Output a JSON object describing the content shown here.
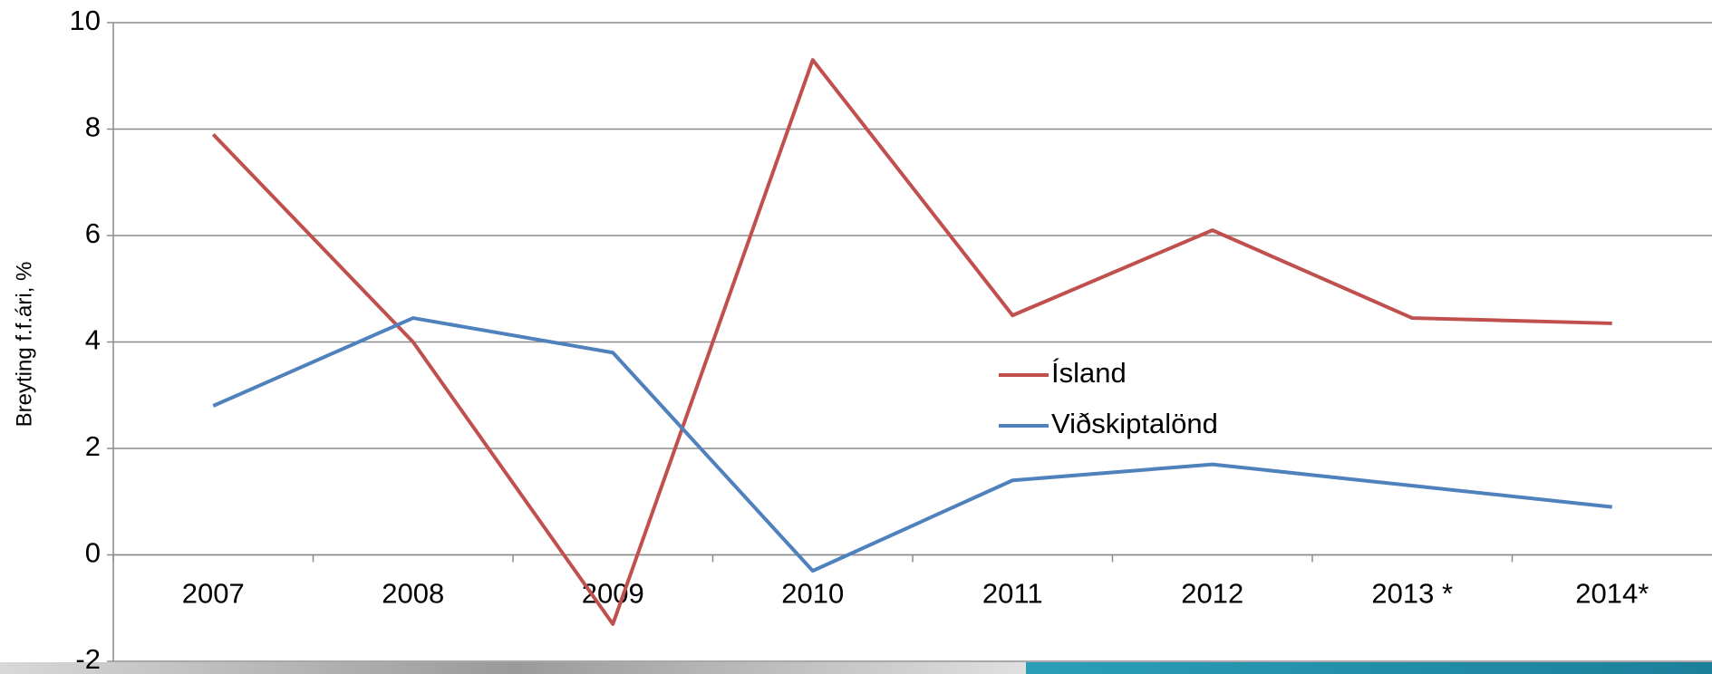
{
  "chart_data": {
    "type": "line",
    "y_label": "Breyting f.f.ári, %",
    "categories": [
      "2007",
      "2008",
      "2009",
      "2010",
      "2011",
      "2012",
      "2013 *",
      "2014*"
    ],
    "series": [
      {
        "name": "Ísland",
        "color": "#c0504d",
        "values": [
          7.9,
          4.0,
          -1.3,
          9.3,
          4.5,
          6.1,
          4.45,
          4.35
        ]
      },
      {
        "name": "Viðskiptalönd",
        "color": "#4f81bd",
        "values": [
          2.8,
          4.45,
          3.8,
          -0.3,
          1.4,
          1.7,
          1.3,
          0.9
        ]
      }
    ],
    "ylim": [
      -2,
      10
    ],
    "yticks": [
      -2,
      0,
      2,
      4,
      6,
      8,
      10
    ],
    "grid": true
  }
}
